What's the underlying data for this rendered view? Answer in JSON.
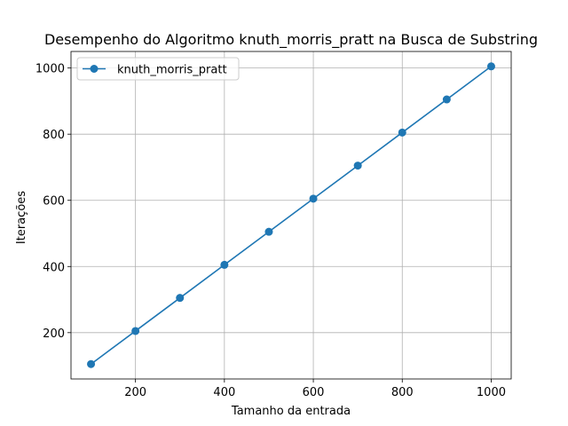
{
  "chart_data": {
    "type": "line",
    "title": "Desempenho do Algoritmo knuth_morris_pratt na Busca de Substring",
    "xlabel": "Tamanho da entrada",
    "ylabel": "Iterações",
    "x": [
      100,
      200,
      300,
      400,
      500,
      600,
      700,
      800,
      900,
      1000
    ],
    "series": [
      {
        "name": "knuth_morris_pratt",
        "color": "#1f77b4",
        "marker": "circle",
        "values": [
          105,
          205,
          305,
          405,
          505,
          605,
          705,
          805,
          905,
          1005
        ]
      }
    ],
    "xlim": [
      55,
      1045
    ],
    "ylim": [
      60,
      1050
    ],
    "xticks": [
      200,
      400,
      600,
      800,
      1000
    ],
    "yticks": [
      200,
      400,
      600,
      800,
      1000
    ],
    "grid": true,
    "legend": "upper left"
  }
}
